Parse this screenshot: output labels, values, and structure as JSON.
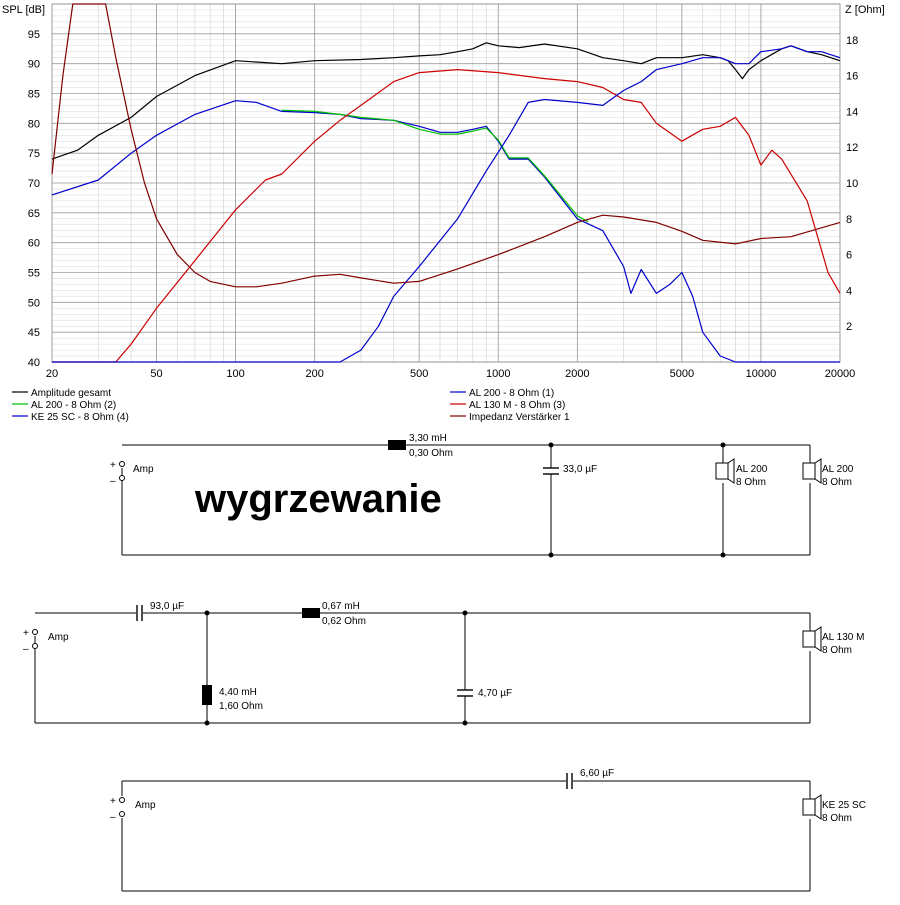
{
  "chart_data": {
    "type": "line",
    "x_scale": "log",
    "xlim": [
      20,
      20000
    ],
    "ylim_left": [
      40,
      100
    ],
    "ylim_right": [
      0,
      20
    ],
    "y_left_label": "SPL [dB]",
    "y_right_label": "Z [Ohm]",
    "x_ticks": [
      20,
      50,
      100,
      200,
      500,
      1000,
      2000,
      5000,
      10000,
      20000
    ],
    "x_tick_labels": [
      "20",
      "50",
      "100",
      "200",
      "500",
      "1000",
      "2000",
      "5000",
      "10000",
      "20000"
    ],
    "y_left_ticks": [
      40,
      45,
      50,
      55,
      60,
      65,
      70,
      75,
      80,
      85,
      90,
      95
    ],
    "y_right_ticks": [
      2,
      4,
      6,
      8,
      10,
      12,
      14,
      16,
      18
    ],
    "grid": true,
    "legend_position": "bottom",
    "series": [
      {
        "name": "Amplitude gesamt",
        "axis": "left",
        "color": "#000000",
        "points": [
          [
            20,
            74
          ],
          [
            25,
            75.5
          ],
          [
            30,
            78
          ],
          [
            40,
            81
          ],
          [
            50,
            84.5
          ],
          [
            70,
            88
          ],
          [
            100,
            90.5
          ],
          [
            150,
            90
          ],
          [
            200,
            90.5
          ],
          [
            300,
            90.7
          ],
          [
            400,
            91
          ],
          [
            500,
            91.3
          ],
          [
            600,
            91.5
          ],
          [
            700,
            92
          ],
          [
            800,
            92.5
          ],
          [
            900,
            93.5
          ],
          [
            1000,
            93
          ],
          [
            1200,
            92.7
          ],
          [
            1500,
            93.3
          ],
          [
            2000,
            92.5
          ],
          [
            2500,
            91
          ],
          [
            3000,
            90.5
          ],
          [
            3500,
            90
          ],
          [
            4000,
            91
          ],
          [
            5000,
            91
          ],
          [
            6000,
            91.5
          ],
          [
            7000,
            91
          ],
          [
            7500,
            90.5
          ],
          [
            8000,
            89
          ],
          [
            8500,
            87.5
          ],
          [
            9000,
            89
          ],
          [
            10000,
            90.5
          ],
          [
            12000,
            92.5
          ],
          [
            13000,
            93
          ],
          [
            15000,
            92
          ],
          [
            17000,
            91.5
          ],
          [
            20000,
            90.5
          ]
        ]
      },
      {
        "name": "AL 200 - 8 Ohm (1)",
        "axis": "left",
        "color": "#0000cc",
        "points": [
          [
            20,
            68
          ],
          [
            30,
            70.5
          ],
          [
            40,
            75
          ],
          [
            50,
            78
          ],
          [
            70,
            81.5
          ],
          [
            100,
            83.8
          ],
          [
            120,
            83.5
          ],
          [
            150,
            82
          ],
          [
            200,
            81.8
          ],
          [
            250,
            81.5
          ],
          [
            300,
            80.8
          ],
          [
            400,
            80.5
          ],
          [
            500,
            79.5
          ],
          [
            600,
            78.5
          ],
          [
            700,
            78.5
          ],
          [
            800,
            79
          ],
          [
            900,
            79.5
          ],
          [
            1000,
            77
          ],
          [
            1100,
            74
          ],
          [
            1300,
            74
          ],
          [
            1500,
            71
          ],
          [
            2000,
            64
          ],
          [
            2500,
            62
          ],
          [
            3000,
            56
          ],
          [
            3200,
            51.5
          ],
          [
            3500,
            55.5
          ],
          [
            4000,
            51.5
          ],
          [
            4500,
            53
          ],
          [
            5000,
            55
          ],
          [
            5500,
            51
          ],
          [
            6000,
            45
          ],
          [
            7000,
            41
          ],
          [
            8000,
            40
          ],
          [
            20000,
            40
          ]
        ]
      },
      {
        "name": "AL 200 - 8 Ohm (2)",
        "axis": "left",
        "color": "#00c000",
        "points": [
          [
            150,
            82.2
          ],
          [
            200,
            82
          ],
          [
            250,
            81.5
          ],
          [
            300,
            81
          ],
          [
            400,
            80.5
          ],
          [
            500,
            79
          ],
          [
            600,
            78.2
          ],
          [
            700,
            78.2
          ],
          [
            800,
            78.7
          ],
          [
            900,
            79.2
          ],
          [
            1000,
            77.2
          ],
          [
            1100,
            74.2
          ],
          [
            1300,
            74.2
          ],
          [
            1500,
            71.2
          ],
          [
            2000,
            64.5
          ],
          [
            2200,
            63.5
          ]
        ]
      },
      {
        "name": "AL 130 M - 8 Ohm (3)",
        "axis": "left",
        "color": "#cc0000",
        "points": [
          [
            20,
            40
          ],
          [
            35,
            40
          ],
          [
            40,
            43
          ],
          [
            50,
            49
          ],
          [
            70,
            57
          ],
          [
            100,
            65.5
          ],
          [
            130,
            70.5
          ],
          [
            150,
            71.5
          ],
          [
            200,
            77
          ],
          [
            250,
            80.5
          ],
          [
            300,
            83
          ],
          [
            400,
            87
          ],
          [
            500,
            88.5
          ],
          [
            700,
            89
          ],
          [
            1000,
            88.5
          ],
          [
            1500,
            87.5
          ],
          [
            2000,
            87
          ],
          [
            2500,
            86
          ],
          [
            3000,
            84
          ],
          [
            3500,
            83.5
          ],
          [
            4000,
            80
          ],
          [
            5000,
            77
          ],
          [
            6000,
            79
          ],
          [
            7000,
            79.5
          ],
          [
            8000,
            81
          ],
          [
            9000,
            78
          ],
          [
            10000,
            73
          ],
          [
            11000,
            75.5
          ],
          [
            12000,
            74
          ],
          [
            15000,
            67
          ],
          [
            18000,
            55
          ],
          [
            20000,
            51.5
          ]
        ]
      },
      {
        "name": "KE 25 SC - 8 Ohm    (4)",
        "axis": "left",
        "color": "#0000cc",
        "points": [
          [
            20,
            40
          ],
          [
            250,
            40
          ],
          [
            300,
            42
          ],
          [
            350,
            46
          ],
          [
            400,
            51
          ],
          [
            500,
            56
          ],
          [
            700,
            64
          ],
          [
            900,
            72
          ],
          [
            1100,
            78
          ],
          [
            1300,
            83.5
          ],
          [
            1500,
            84
          ],
          [
            2000,
            83.5
          ],
          [
            2500,
            83
          ],
          [
            3000,
            85.5
          ],
          [
            3500,
            87
          ],
          [
            4000,
            89
          ],
          [
            5000,
            90
          ],
          [
            6000,
            91
          ],
          [
            7000,
            91
          ],
          [
            8000,
            90
          ],
          [
            9000,
            90
          ],
          [
            10000,
            92
          ],
          [
            12000,
            92.5
          ],
          [
            13000,
            93
          ],
          [
            15000,
            92
          ],
          [
            17000,
            92
          ],
          [
            20000,
            91
          ]
        ]
      },
      {
        "name": "Impedanz Verstärker 1",
        "axis": "right",
        "color": "#800000",
        "points": [
          [
            20,
            10.5
          ],
          [
            22,
            16
          ],
          [
            24,
            20
          ],
          [
            30,
            20
          ],
          [
            32,
            20
          ],
          [
            35,
            17
          ],
          [
            40,
            13
          ],
          [
            45,
            10
          ],
          [
            50,
            8
          ],
          [
            60,
            6
          ],
          [
            70,
            5
          ],
          [
            80,
            4.5
          ],
          [
            100,
            4.2
          ],
          [
            120,
            4.2
          ],
          [
            150,
            4.4
          ],
          [
            200,
            4.8
          ],
          [
            250,
            4.9
          ],
          [
            300,
            4.7
          ],
          [
            400,
            4.4
          ],
          [
            500,
            4.5
          ],
          [
            700,
            5.2
          ],
          [
            1000,
            6
          ],
          [
            1500,
            7
          ],
          [
            2000,
            7.8
          ],
          [
            2500,
            8.2
          ],
          [
            3000,
            8.1
          ],
          [
            4000,
            7.8
          ],
          [
            5000,
            7.3
          ],
          [
            6000,
            6.8
          ],
          [
            8000,
            6.6
          ],
          [
            10000,
            6.9
          ],
          [
            13000,
            7.0
          ],
          [
            17000,
            7.5
          ],
          [
            20000,
            7.8
          ]
        ]
      }
    ]
  },
  "overlay": {
    "title_text": "wygrzewanie"
  },
  "circuits": {
    "c1": {
      "amp": "Amp",
      "plus": "+",
      "minus": "–",
      "inductor_value": "3,30 mH",
      "inductor_res": "0,30 Ohm",
      "cap": "33,0 µF",
      "spk1_name": "AL 200",
      "spk1_imp": "8 Ohm",
      "spk2_name": "AL 200",
      "spk2_imp": "8 Ohm"
    },
    "c2": {
      "amp": "Amp",
      "plus": "+",
      "minus": "–",
      "cap_series": "93,0 µF",
      "ind_series_value": "0,67 mH",
      "ind_series_res": "0,62 Ohm",
      "ind_shunt_value": "4,40 mH",
      "ind_shunt_res": "1,60 Ohm",
      "cap_shunt": "4,70 µF",
      "spk_name": "AL 130 M",
      "spk_imp": "8 Ohm"
    },
    "c3": {
      "amp": "Amp",
      "plus": "+",
      "minus": "–",
      "cap_series": "6,60 µF",
      "spk_name": "KE 25 SC",
      "spk_imp": "8 Ohm"
    }
  }
}
